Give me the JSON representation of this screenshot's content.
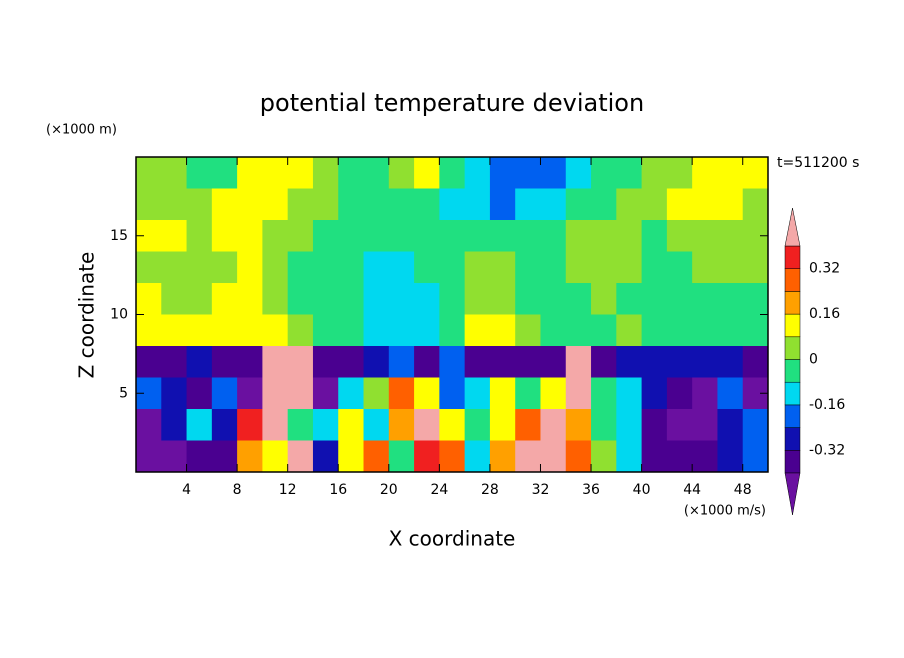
{
  "chart_data": {
    "type": "contour",
    "title": "potential temperature deviation",
    "subtitle": "t=511200 s",
    "x_label": "X coordinate",
    "x_unit": "(×1000 m/s)",
    "y_label": "Z coordinate",
    "y_unit": "(×1000 m)",
    "xlim": [
      0,
      50
    ],
    "ylim": [
      0,
      20
    ],
    "xticks": [
      4,
      8,
      12,
      16,
      20,
      24,
      28,
      32,
      36,
      40,
      44,
      48
    ],
    "yticks": [
      5,
      10,
      15
    ],
    "x": [
      1,
      3,
      5,
      7,
      9,
      11,
      13,
      15,
      17,
      19,
      21,
      23,
      25,
      27,
      29,
      31,
      33,
      35,
      37,
      39,
      41,
      43,
      45,
      47,
      49
    ],
    "y": [
      19,
      17,
      15,
      13,
      11,
      9,
      7,
      5,
      3,
      1
    ],
    "z": [
      [
        0.02,
        0.02,
        -0.02,
        -0.02,
        0.1,
        0.1,
        0.1,
        0.02,
        -0.02,
        -0.02,
        0.02,
        0.1,
        -0.05,
        -0.12,
        -0.2,
        -0.2,
        -0.2,
        -0.12,
        -0.05,
        -0.02,
        0.02,
        0.02,
        0.1,
        0.1,
        0.1
      ],
      [
        0.02,
        0.02,
        0.02,
        0.1,
        0.1,
        0.1,
        0.02,
        0.02,
        -0.02,
        -0.02,
        -0.02,
        -0.05,
        -0.12,
        -0.12,
        -0.2,
        -0.12,
        -0.12,
        -0.05,
        -0.02,
        0.02,
        0.02,
        0.1,
        0.1,
        0.1,
        0.02
      ],
      [
        0.1,
        0.1,
        0.02,
        0.1,
        0.1,
        0.02,
        0.02,
        -0.02,
        -0.02,
        -0.05,
        -0.05,
        -0.02,
        -0.02,
        -0.02,
        -0.05,
        -0.02,
        -0.02,
        0.02,
        0.02,
        0.02,
        -0.02,
        0.02,
        0.02,
        0.02,
        0.02
      ],
      [
        0.02,
        0.02,
        0.02,
        0.02,
        0.1,
        0.02,
        -0.02,
        -0.02,
        -0.05,
        -0.12,
        -0.12,
        -0.05,
        -0.02,
        0.02,
        0.02,
        -0.02,
        -0.02,
        0.02,
        0.02,
        0.02,
        -0.02,
        -0.02,
        0.02,
        0.02,
        0.02
      ],
      [
        0.1,
        0.02,
        0.02,
        0.1,
        0.1,
        0.02,
        -0.02,
        -0.02,
        -0.05,
        -0.12,
        -0.12,
        -0.12,
        -0.05,
        0.02,
        0.02,
        -0.05,
        -0.02,
        -0.02,
        0.02,
        -0.02,
        -0.02,
        -0.02,
        -0.02,
        -0.02,
        -0.02
      ],
      [
        0.1,
        0.1,
        0.1,
        0.1,
        0.1,
        0.1,
        0.02,
        -0.02,
        -0.05,
        -0.12,
        -0.12,
        -0.12,
        -0.05,
        0.1,
        0.1,
        0.02,
        -0.02,
        -0.02,
        -0.02,
        0.02,
        -0.02,
        -0.02,
        -0.02,
        -0.02,
        -0.02
      ],
      [
        -0.36,
        -0.36,
        -0.28,
        -0.36,
        -0.36,
        0.45,
        0.45,
        -0.36,
        -0.36,
        -0.28,
        -0.2,
        -0.36,
        -0.2,
        -0.36,
        -0.36,
        -0.36,
        -0.36,
        0.45,
        -0.36,
        -0.28,
        -0.28,
        -0.28,
        -0.28,
        -0.28,
        -0.36
      ],
      [
        -0.2,
        -0.28,
        -0.36,
        -0.2,
        -0.45,
        0.45,
        0.45,
        -0.45,
        -0.12,
        0.02,
        0.28,
        0.1,
        -0.2,
        -0.12,
        0.1,
        -0.05,
        0.1,
        0.45,
        -0.05,
        -0.12,
        -0.28,
        -0.36,
        -0.45,
        -0.2,
        -0.45
      ],
      [
        -0.45,
        -0.28,
        -0.12,
        -0.28,
        0.36,
        0.45,
        -0.05,
        -0.12,
        0.1,
        -0.12,
        0.2,
        0.45,
        0.1,
        -0.05,
        0.1,
        0.3,
        0.45,
        0.2,
        -0.05,
        -0.12,
        -0.36,
        -0.45,
        -0.45,
        -0.28,
        -0.2
      ],
      [
        -0.45,
        -0.45,
        -0.36,
        -0.36,
        0.2,
        0.1,
        0.45,
        -0.28,
        0.1,
        0.28,
        -0.05,
        0.36,
        0.3,
        -0.12,
        0.2,
        0.45,
        0.45,
        0.3,
        0.02,
        -0.12,
        -0.36,
        -0.36,
        -0.36,
        -0.28,
        -0.2
      ]
    ],
    "levels": [
      -0.4,
      -0.32,
      -0.24,
      -0.16,
      -0.08,
      0,
      0.08,
      0.16,
      0.24,
      0.32,
      0.4
    ],
    "colors": [
      "#6a10a0",
      "#4a0090",
      "#1010b0",
      "#0060f0",
      "#00d8f0",
      "#20e080",
      "#90e030",
      "#ffff00",
      "#ffa000",
      "#ff6000",
      "#f02020",
      "#f4a8a8"
    ],
    "cbticks": [
      -0.32,
      -0.16,
      0,
      0.16,
      0.32
    ]
  }
}
